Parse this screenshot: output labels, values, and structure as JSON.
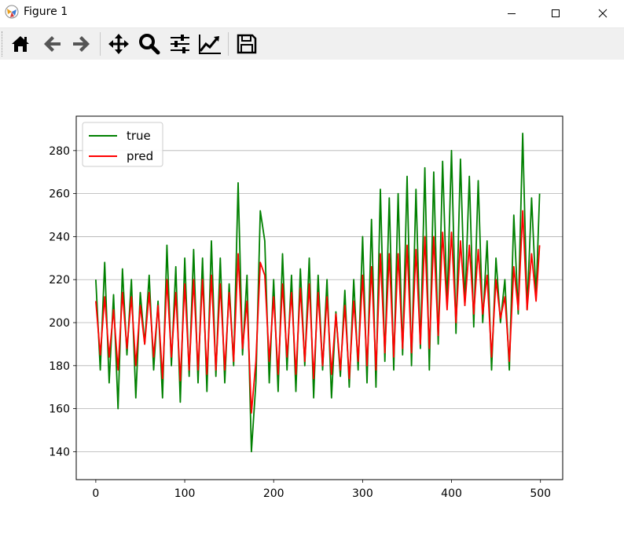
{
  "window": {
    "title": "Figure 1"
  },
  "window_controls": {
    "minimize_icon": "minimize-icon",
    "maximize_icon": "maximize-icon",
    "close_icon": "close-icon"
  },
  "toolbar": {
    "buttons": [
      "home-icon",
      "back-arrow-icon",
      "forward-arrow-icon",
      "pan-icon",
      "zoom-icon",
      "configure-subplots-icon",
      "edit-axis-icon",
      "save-icon"
    ]
  },
  "colors": {
    "true": "#008000",
    "pred": "#ff0000",
    "grid": "#b0b0b0"
  },
  "chart_data": {
    "type": "line",
    "title": "",
    "xlabel": "",
    "ylabel": "",
    "xlim": [
      -22,
      525
    ],
    "ylim": [
      127,
      296
    ],
    "xticks": [
      0,
      100,
      200,
      300,
      400,
      500
    ],
    "yticks": [
      140,
      160,
      180,
      200,
      220,
      240,
      260,
      280
    ],
    "grid": "horizontal",
    "legend": "upper-left",
    "series": [
      {
        "name": "true",
        "color": "#008000",
        "x": [
          0,
          5,
          10,
          15,
          20,
          25,
          30,
          35,
          40,
          45,
          50,
          55,
          60,
          65,
          70,
          75,
          80,
          85,
          90,
          95,
          100,
          105,
          110,
          115,
          120,
          125,
          130,
          135,
          140,
          145,
          150,
          155,
          160,
          165,
          170,
          175,
          180,
          185,
          190,
          195,
          200,
          205,
          210,
          215,
          220,
          225,
          230,
          235,
          240,
          245,
          250,
          255,
          260,
          265,
          270,
          275,
          280,
          285,
          290,
          295,
          300,
          305,
          310,
          315,
          320,
          325,
          330,
          335,
          340,
          345,
          350,
          355,
          360,
          365,
          370,
          375,
          380,
          385,
          390,
          395,
          400,
          405,
          410,
          415,
          420,
          425,
          430,
          435,
          440,
          445,
          450,
          455,
          460,
          465,
          470,
          475,
          480,
          485,
          490,
          495,
          499
        ],
        "y": [
          220,
          178,
          228,
          172,
          213,
          160,
          225,
          185,
          220,
          165,
          214,
          190,
          222,
          178,
          210,
          165,
          236,
          180,
          226,
          163,
          230,
          175,
          234,
          172,
          230,
          168,
          238,
          175,
          230,
          172,
          218,
          180,
          265,
          185,
          222,
          140,
          172,
          252,
          238,
          172,
          220,
          168,
          232,
          178,
          222,
          168,
          225,
          180,
          230,
          165,
          222,
          178,
          220,
          165,
          205,
          175,
          215,
          170,
          220,
          178,
          240,
          172,
          248,
          170,
          262,
          182,
          258,
          178,
          260,
          185,
          268,
          180,
          262,
          188,
          272,
          178,
          270,
          190,
          275,
          208,
          280,
          195,
          276,
          208,
          268,
          198,
          266,
          200,
          238,
          178,
          230,
          200,
          220,
          178,
          250,
          204,
          288,
          206,
          258,
          212,
          260
        ]
      },
      {
        "name": "pred",
        "color": "#ff0000",
        "x": [
          0,
          5,
          10,
          15,
          20,
          25,
          30,
          35,
          40,
          45,
          50,
          55,
          60,
          65,
          70,
          75,
          80,
          85,
          90,
          95,
          100,
          105,
          110,
          115,
          120,
          125,
          130,
          135,
          140,
          145,
          150,
          155,
          160,
          165,
          170,
          175,
          180,
          185,
          190,
          195,
          200,
          205,
          210,
          215,
          220,
          225,
          230,
          235,
          240,
          245,
          250,
          255,
          260,
          265,
          270,
          275,
          280,
          285,
          290,
          295,
          300,
          305,
          310,
          315,
          320,
          325,
          330,
          335,
          340,
          345,
          350,
          355,
          360,
          365,
          370,
          375,
          380,
          385,
          390,
          395,
          400,
          405,
          410,
          415,
          420,
          425,
          430,
          435,
          440,
          445,
          450,
          455,
          460,
          465,
          470,
          475,
          480,
          485,
          490,
          495,
          499
        ],
        "y": [
          210,
          185,
          212,
          184,
          206,
          178,
          214,
          188,
          212,
          180,
          208,
          190,
          214,
          184,
          208,
          174,
          220,
          184,
          214,
          173,
          218,
          178,
          220,
          178,
          220,
          176,
          222,
          178,
          218,
          178,
          214,
          182,
          232,
          188,
          210,
          158,
          182,
          228,
          222,
          182,
          212,
          176,
          218,
          184,
          214,
          176,
          216,
          182,
          218,
          174,
          214,
          180,
          212,
          176,
          204,
          178,
          208,
          174,
          210,
          182,
          222,
          180,
          226,
          178,
          232,
          186,
          232,
          184,
          232,
          188,
          236,
          186,
          234,
          190,
          240,
          188,
          240,
          194,
          242,
          206,
          242,
          200,
          238,
          208,
          236,
          204,
          234,
          204,
          222,
          184,
          220,
          202,
          212,
          182,
          226,
          206,
          252,
          206,
          232,
          210,
          236
        ]
      }
    ]
  }
}
